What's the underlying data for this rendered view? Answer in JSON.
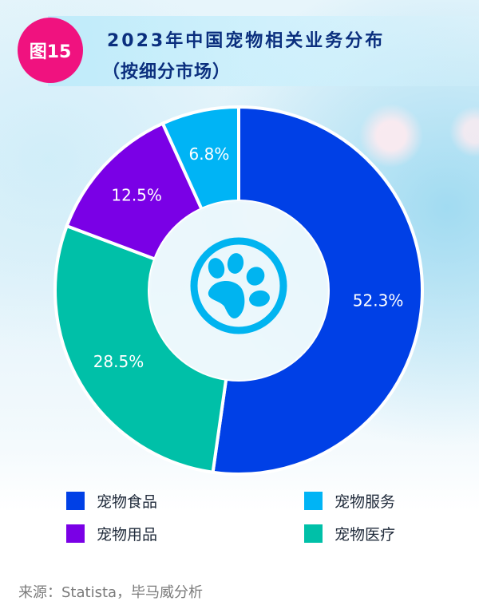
{
  "header": {
    "badge": "图15",
    "title_line1": "2023年中国宠物相关业务分布",
    "title_line2": "（按细分市场）"
  },
  "center_icon": "paw-icon",
  "chart_data": {
    "type": "pie",
    "variant": "donut",
    "title": "2023年中国宠物相关业务分布（按细分市场）",
    "categories": [
      "宠物食品",
      "宠物医疗",
      "宠物用品",
      "宠物服务"
    ],
    "values": [
      52.3,
      28.5,
      12.5,
      6.8
    ],
    "unit": "%",
    "data_labels": [
      "52.3%",
      "28.5%",
      "12.5%",
      "6.8%"
    ],
    "colors": [
      "#0040e6",
      "#00c0a8",
      "#7a00e6",
      "#00b4f5"
    ],
    "start_angle": "12 o'clock, clockwise",
    "legend_position": "bottom",
    "legend_order": [
      "宠物食品",
      "宠物服务",
      "宠物用品",
      "宠物医疗"
    ]
  },
  "legend": [
    {
      "label": "宠物食品",
      "color": "#0040e6"
    },
    {
      "label": "宠物服务",
      "color": "#00b4f5"
    },
    {
      "label": "宠物用品",
      "color": "#7a00e6"
    },
    {
      "label": "宠物医疗",
      "color": "#00c0a8"
    }
  ],
  "footer": {
    "source": "来源：Statista，毕马威分析"
  }
}
